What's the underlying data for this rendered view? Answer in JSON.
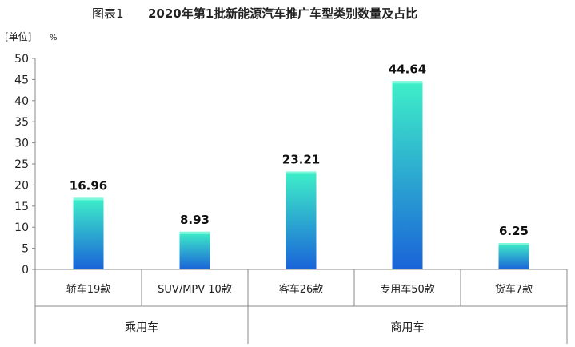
{
  "chart_data": {
    "type": "bar",
    "title_prefix": "图表1",
    "title": "2020年第1批新能源汽车推广车型类别数量及占比",
    "unit_label": "[单位]",
    "unit_symbol": "%",
    "ylim": [
      0,
      50
    ],
    "yticks": [
      "0",
      "5",
      "10",
      "15",
      "20",
      "25",
      "30",
      "35",
      "40",
      "45",
      "50"
    ],
    "categories": [
      "轿车19款",
      "SUV/MPV 10款",
      "客车26款",
      "专用车50款",
      "货车7款"
    ],
    "values": [
      16.96,
      8.93,
      23.21,
      44.64,
      6.25
    ],
    "value_labels": [
      "16.96",
      "8.93",
      "23.21",
      "44.64",
      "6.25"
    ],
    "groups": [
      {
        "label": "乘用车",
        "span": [
          0,
          1
        ]
      },
      {
        "label": "商用车",
        "span": [
          2,
          4
        ]
      }
    ],
    "grid": false,
    "colors": {
      "bar_top": "#3ef0c8",
      "bar_bottom": "#1a63d8",
      "axis": "#888888"
    }
  }
}
